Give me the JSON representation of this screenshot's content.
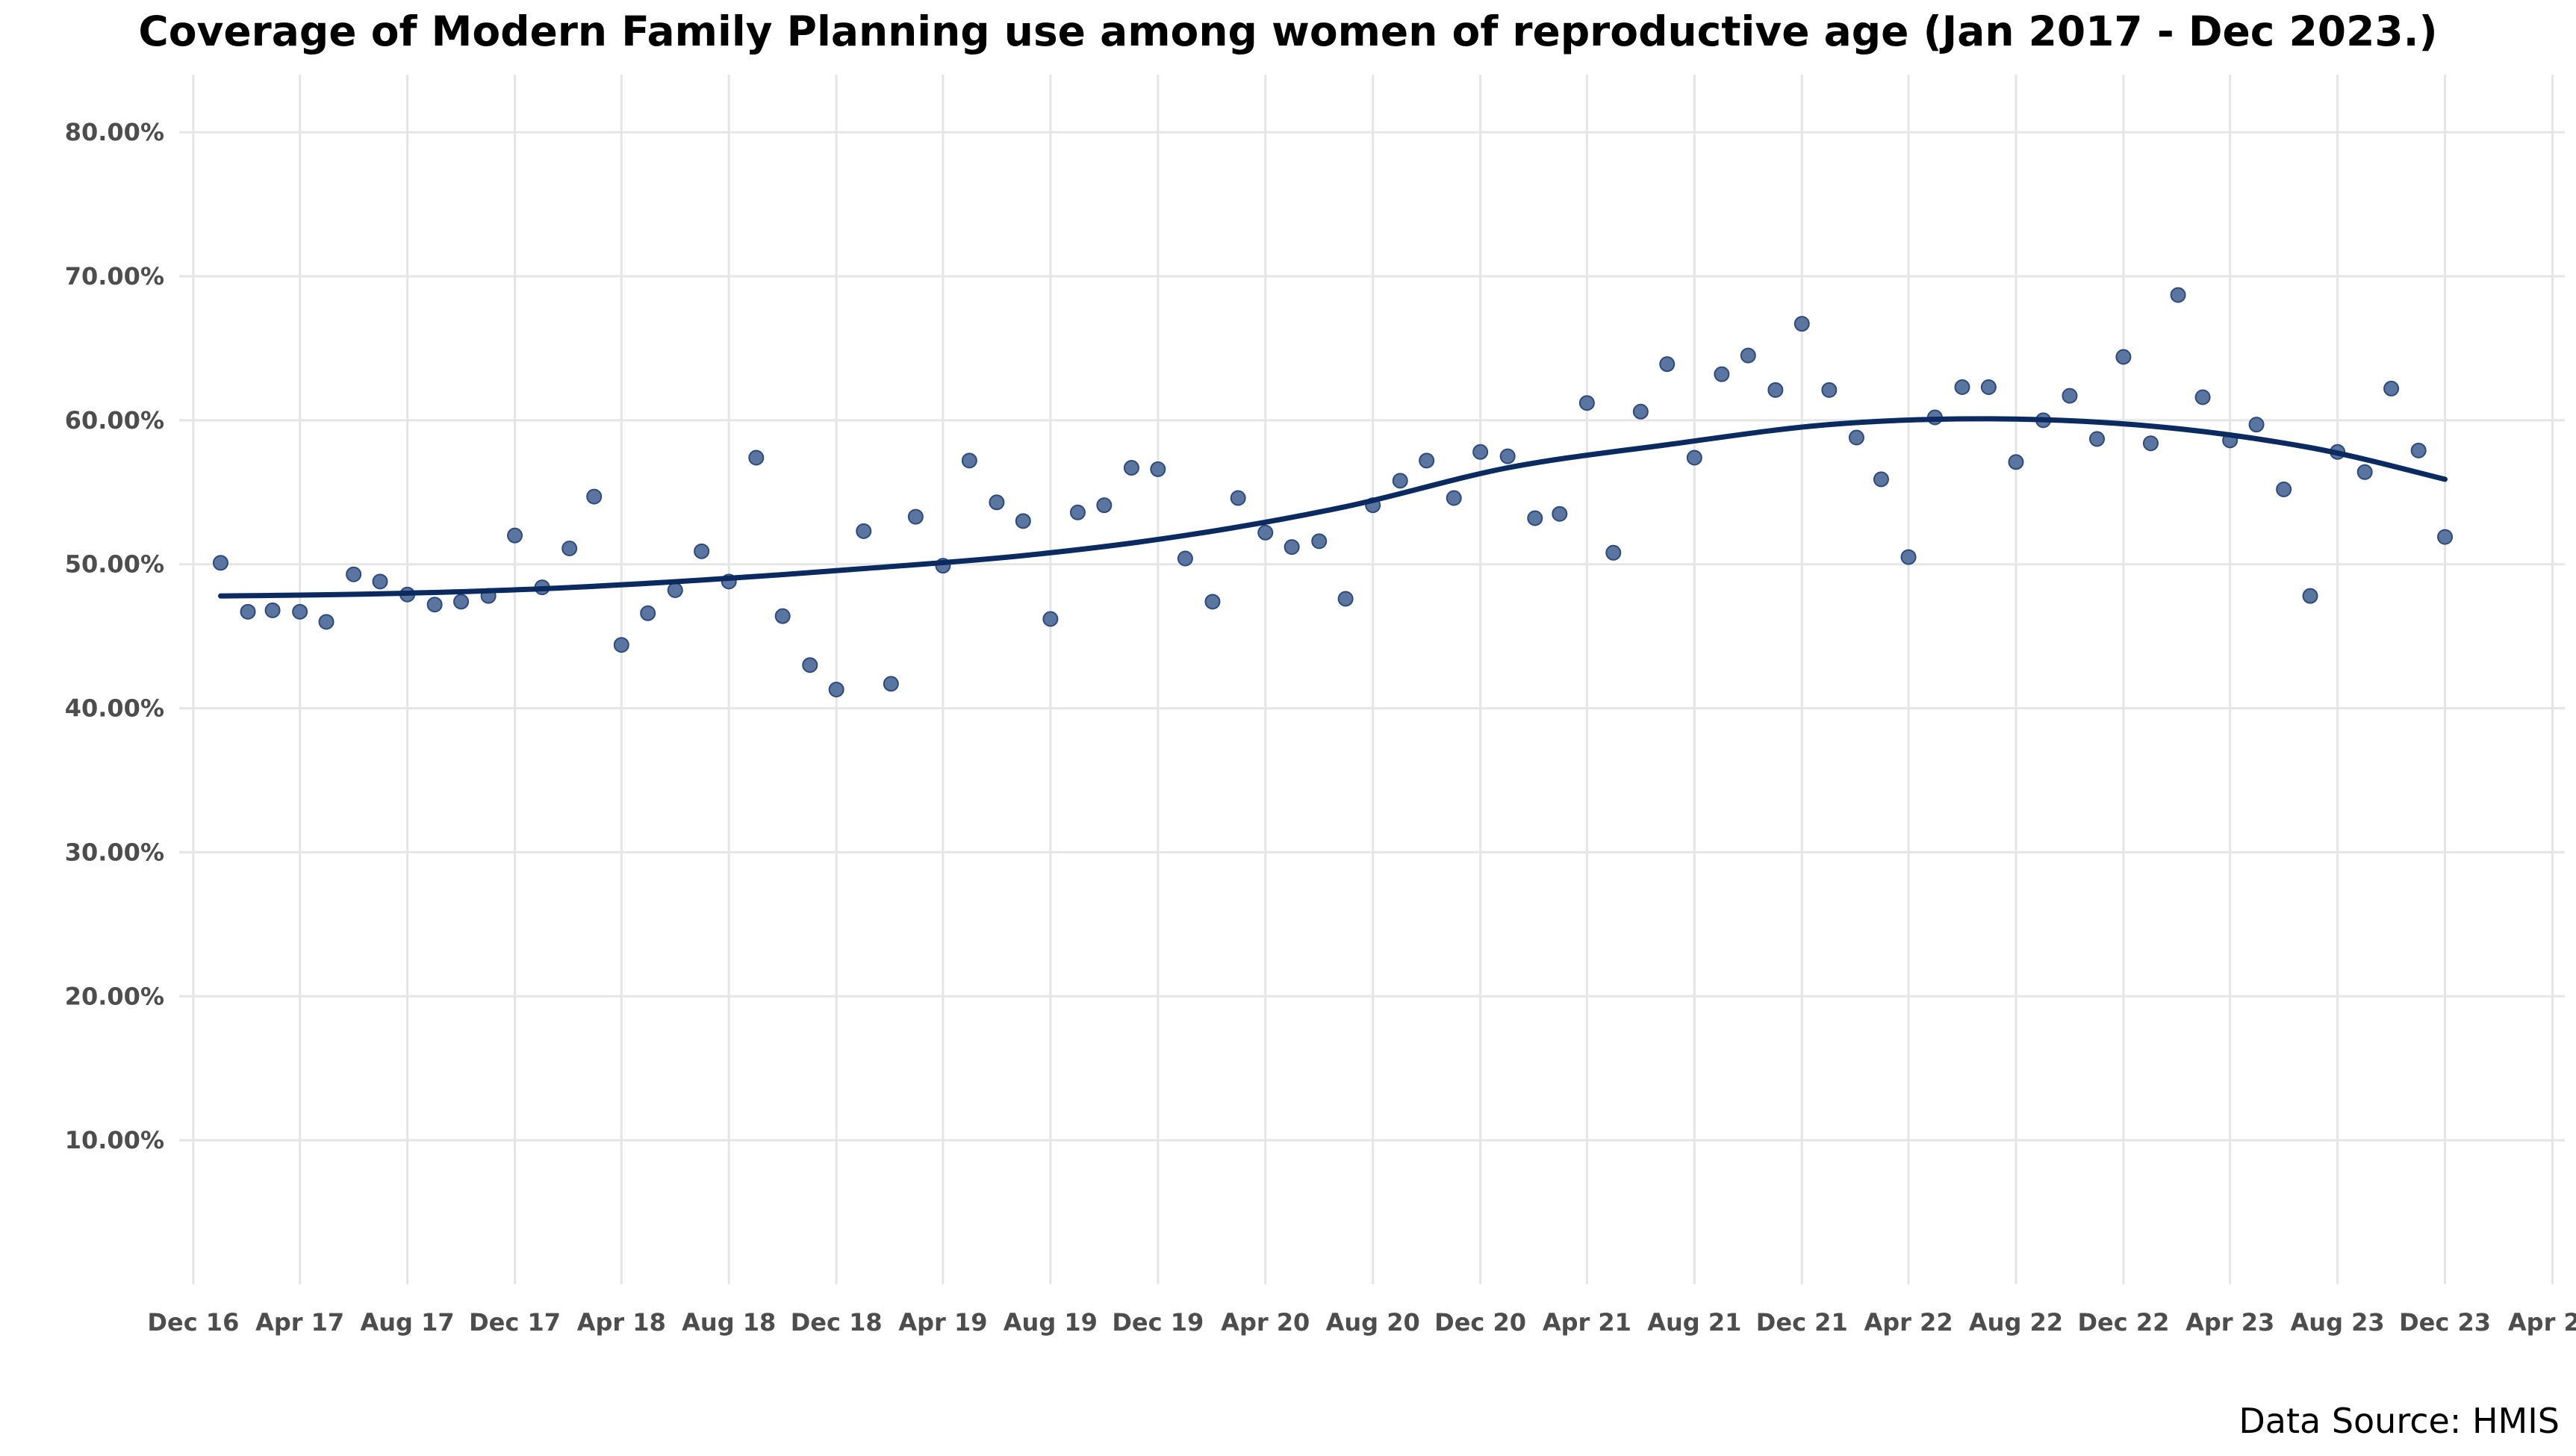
{
  "chart_data": {
    "type": "scatter",
    "title": "Coverage of Modern Family Planning use among women of reproductive age (Jan 2017 - Dec 2023.)",
    "xlabel": "",
    "ylabel": "",
    "source_note": "Data Source: HMIS",
    "grid": true,
    "colors": {
      "points": "#5b75a1",
      "point_edge": "#2e4a7a",
      "trend": "#0b2a5f",
      "grid": "#e5e5e5"
    },
    "xlim": [
      "2016-11-15",
      "2024-04-15"
    ],
    "ylim": [
      0,
      84
    ],
    "y_ticks": [
      10,
      20,
      30,
      40,
      50,
      60,
      70,
      80
    ],
    "y_tick_labels": [
      "10.00%",
      "20.00%",
      "30.00%",
      "40.00%",
      "50.00%",
      "60.00%",
      "70.00%",
      "80.00%"
    ],
    "x_ticks": [
      "2016-12-01",
      "2017-04-01",
      "2017-08-01",
      "2017-12-01",
      "2018-04-01",
      "2018-08-01",
      "2018-12-01",
      "2019-04-01",
      "2019-08-01",
      "2019-12-01",
      "2020-04-01",
      "2020-08-01",
      "2020-12-01",
      "2021-04-01",
      "2021-08-01",
      "2021-12-01",
      "2022-04-01",
      "2022-08-01",
      "2022-12-01",
      "2023-04-01",
      "2023-08-01",
      "2023-12-01",
      "2024-04-01"
    ],
    "x_tick_labels": [
      "Dec 16",
      "Apr 17",
      "Aug 17",
      "Dec 17",
      "Apr 18",
      "Aug 18",
      "Dec 18",
      "Apr 19",
      "Aug 19",
      "Dec 19",
      "Apr 20",
      "Aug 20",
      "Dec 20",
      "Apr 21",
      "Aug 21",
      "Dec 21",
      "Apr 22",
      "Aug 22",
      "Dec 22",
      "Apr 23",
      "Aug 23",
      "Dec 23",
      "Apr 24"
    ],
    "series": [
      {
        "type": "scatter",
        "x": [
          "2017-01-01",
          "2017-02-01",
          "2017-03-01",
          "2017-04-01",
          "2017-05-01",
          "2017-06-01",
          "2017-07-01",
          "2017-08-01",
          "2017-09-01",
          "2017-10-01",
          "2017-11-01",
          "2017-12-01",
          "2018-01-01",
          "2018-02-01",
          "2018-03-01",
          "2018-04-01",
          "2018-05-01",
          "2018-06-01",
          "2018-07-01",
          "2018-08-01",
          "2018-09-01",
          "2018-10-01",
          "2018-11-01",
          "2018-12-01",
          "2019-01-01",
          "2019-02-01",
          "2019-03-01",
          "2019-04-01",
          "2019-05-01",
          "2019-06-01",
          "2019-07-01",
          "2019-08-01",
          "2019-09-01",
          "2019-10-01",
          "2019-11-01",
          "2019-12-01",
          "2020-01-01",
          "2020-02-01",
          "2020-03-01",
          "2020-04-01",
          "2020-05-01",
          "2020-06-01",
          "2020-07-01",
          "2020-08-01",
          "2020-09-01",
          "2020-10-01",
          "2020-11-01",
          "2020-12-01",
          "2021-01-01",
          "2021-02-01",
          "2021-03-01",
          "2021-04-01",
          "2021-05-01",
          "2021-06-01",
          "2021-07-01",
          "2021-08-01",
          "2021-09-01",
          "2021-10-01",
          "2021-11-01",
          "2021-12-01",
          "2022-01-01",
          "2022-02-01",
          "2022-03-01",
          "2022-04-01",
          "2022-05-01",
          "2022-06-01",
          "2022-07-01",
          "2022-08-01",
          "2022-09-01",
          "2022-10-01",
          "2022-11-01",
          "2022-12-01",
          "2023-01-01",
          "2023-02-01",
          "2023-03-01",
          "2023-04-01",
          "2023-05-01",
          "2023-06-01",
          "2023-07-01",
          "2023-08-01",
          "2023-09-01",
          "2023-10-01",
          "2023-11-01",
          "2023-12-01"
        ],
        "values": [
          50.1,
          46.7,
          46.8,
          46.7,
          46.0,
          49.3,
          48.8,
          47.9,
          47.2,
          47.4,
          47.8,
          52.0,
          48.4,
          51.1,
          54.7,
          44.4,
          46.6,
          48.2,
          50.9,
          48.8,
          57.4,
          46.4,
          43.0,
          41.3,
          52.3,
          41.7,
          53.3,
          49.9,
          57.2,
          54.3,
          53.0,
          46.2,
          53.6,
          54.1,
          56.7,
          56.6,
          50.4,
          47.4,
          54.6,
          52.2,
          51.2,
          51.6,
          47.6,
          54.1,
          55.8,
          57.2,
          54.6,
          57.8,
          57.5,
          53.2,
          53.5,
          61.2,
          50.8,
          60.6,
          63.9,
          57.4,
          63.2,
          64.5,
          62.1,
          66.7,
          62.1,
          58.8,
          55.9,
          50.5,
          60.2,
          62.3,
          62.3,
          57.1,
          60.0,
          61.7,
          58.7,
          64.4,
          58.4,
          68.7,
          61.6,
          58.6,
          59.7,
          55.2,
          47.8,
          57.8,
          56.4,
          62.2,
          57.9,
          51.9
        ]
      },
      {
        "type": "line",
        "x": [
          "2017-01-01",
          "2017-07-01",
          "2018-01-01",
          "2018-07-01",
          "2019-01-01",
          "2019-07-01",
          "2020-01-01",
          "2020-07-01",
          "2021-01-01",
          "2021-07-01",
          "2022-01-01",
          "2022-07-01",
          "2023-01-01",
          "2023-07-01",
          "2023-12-01"
        ],
        "values": [
          47.8,
          47.95,
          48.3,
          48.9,
          49.7,
          50.6,
          52.0,
          54.0,
          56.7,
          58.3,
          59.7,
          60.1,
          59.6,
          58.1,
          55.9
        ]
      }
    ]
  }
}
